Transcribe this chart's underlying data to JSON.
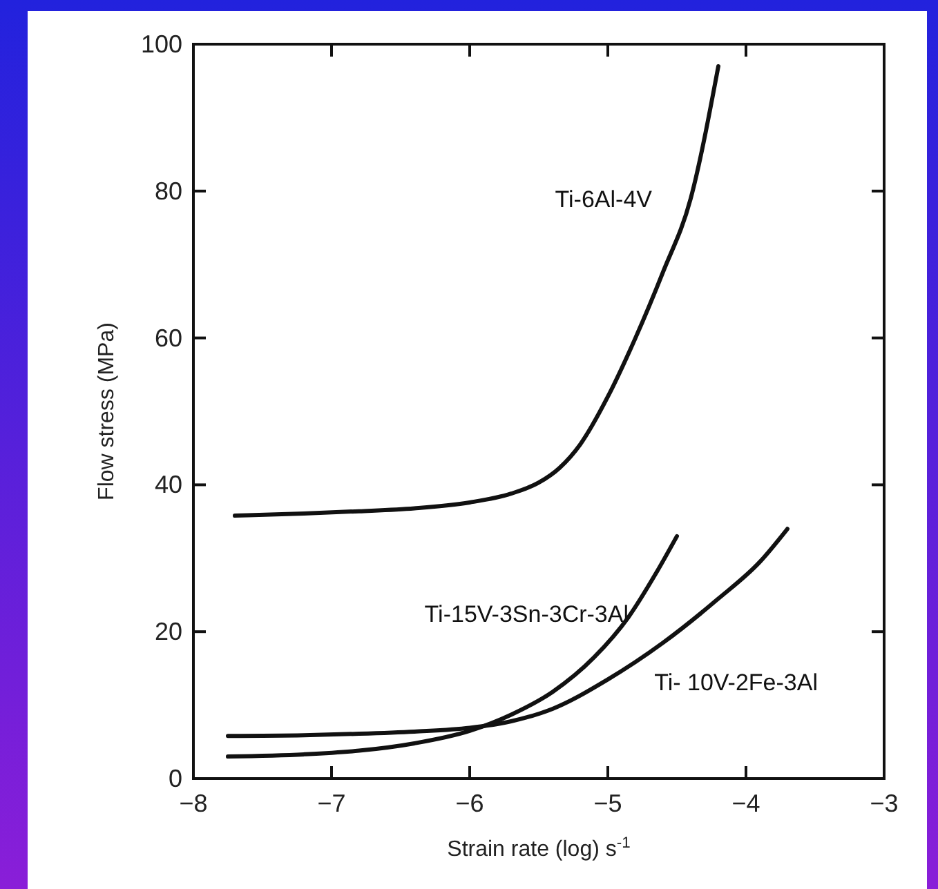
{
  "chart_data": {
    "type": "line",
    "xlabel": "Strain rate (log) s$^{-1}$",
    "ylabel": "Flow stress (MPa)",
    "xlim": [
      -8,
      -3
    ],
    "ylim": [
      0,
      100
    ],
    "xticks": [
      -8,
      -7,
      -6,
      -5,
      -4,
      -3
    ],
    "yticks": [
      0,
      20,
      40,
      60,
      80,
      100
    ],
    "grid": false,
    "marker": "none",
    "line_style": "solid",
    "series": [
      {
        "name": "Ti-6Al-4V",
        "color": "#111111",
        "x": [
          -7.7,
          -7.2,
          -6.8,
          -6.4,
          -6.0,
          -5.7,
          -5.5,
          -5.35,
          -5.2,
          -5.0,
          -4.8,
          -4.6,
          -4.4,
          -4.2
        ],
        "values": [
          35.8,
          36.1,
          36.4,
          36.8,
          37.6,
          38.8,
          40.3,
          42.3,
          45.5,
          52,
          60,
          69,
          79,
          97
        ]
      },
      {
        "name": "Ti-15V-3Sn-3Cr-3Al",
        "color": "#111111",
        "x": [
          -7.75,
          -7.2,
          -6.8,
          -6.4,
          -6.0,
          -5.7,
          -5.4,
          -5.1,
          -4.85,
          -4.65,
          -4.5
        ],
        "values": [
          3,
          3.3,
          3.8,
          4.8,
          6.5,
          8.7,
          11.8,
          16.5,
          22,
          28,
          33
        ]
      },
      {
        "name": "Ti- 10V-2Fe-3Al",
        "color": "#111111",
        "x": [
          -7.75,
          -7.2,
          -6.8,
          -6.4,
          -6.0,
          -5.7,
          -5.4,
          -5.0,
          -4.6,
          -4.2,
          -3.9,
          -3.7
        ],
        "values": [
          5.8,
          5.9,
          6.1,
          6.4,
          6.9,
          7.8,
          9.5,
          13.5,
          18.5,
          24.5,
          29.5,
          34
        ]
      }
    ]
  }
}
